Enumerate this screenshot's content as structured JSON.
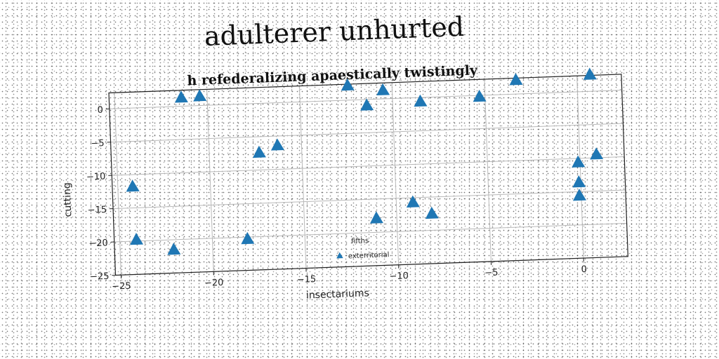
{
  "page": {
    "title": "adulterer unhurted"
  },
  "chart_data": {
    "type": "scatter",
    "title": "h refederalizing apaestically twistingly",
    "xlabel": "insectariums",
    "ylabel": "cutting",
    "xlim": [
      -25.3,
      2.4
    ],
    "ylim": [
      -25.0,
      2.4
    ],
    "xticks": [
      -25,
      -20,
      -15,
      -10,
      -5,
      0
    ],
    "xtick_labels": [
      "−25",
      "−20",
      "−15",
      "−10",
      "−5",
      "0"
    ],
    "yticks": [
      -25,
      -20,
      -15,
      -10,
      -5,
      0
    ],
    "ytick_labels": [
      "−25",
      "−20",
      "−15",
      "−10",
      "−5",
      "0"
    ],
    "grid": true,
    "legend_position": "lower center",
    "legend_title": "fifths",
    "series": [
      {
        "name": "exterritorial",
        "color": "#1f77b4",
        "marker": "triangle",
        "points": [
          {
            "x": -21.4,
            "y": 1.3
          },
          {
            "x": -20.4,
            "y": 1.4
          },
          {
            "x": -12.4,
            "y": 2.2
          },
          {
            "x": -11.4,
            "y": -0.9
          },
          {
            "x": -10.5,
            "y": 1.3
          },
          {
            "x": -8.5,
            "y": -0.6
          },
          {
            "x": -5.3,
            "y": -0.2
          },
          {
            "x": -3.3,
            "y": 2.1
          },
          {
            "x": 0.7,
            "y": 2.5
          },
          {
            "x": -17.3,
            "y": -7.4
          },
          {
            "x": -16.3,
            "y": -6.4
          },
          {
            "x": -24.2,
            "y": -11.8
          },
          {
            "x": -24.1,
            "y": -19.8
          },
          {
            "x": -22.1,
            "y": -21.5
          },
          {
            "x": -18.1,
            "y": -20.3
          },
          {
            "x": -11.1,
            "y": -17.9
          },
          {
            "x": -9.1,
            "y": -15.7
          },
          {
            "x": -8.1,
            "y": -17.5
          },
          {
            "x": -0.1,
            "y": -10.6
          },
          {
            "x": 0.9,
            "y": -9.5
          },
          {
            "x": -0.1,
            "y": -13.6
          },
          {
            "x": -0.1,
            "y": -15.6
          }
        ]
      }
    ]
  }
}
